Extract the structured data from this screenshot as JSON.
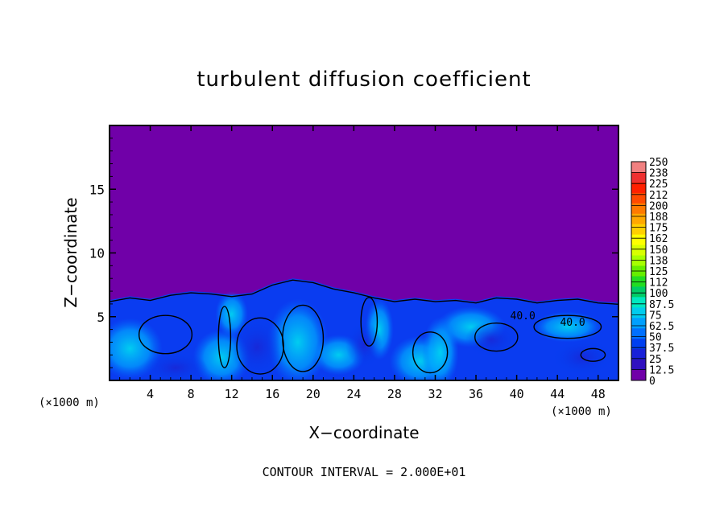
{
  "chart_data": {
    "type": "heatmap",
    "title": "turbulent diffusion coefficient",
    "xlabel": "X−coordinate",
    "ylabel": "Z−coordinate",
    "x_unit_left": "(×1000 m)",
    "x_unit_right": "(×1000 m)",
    "footer": "CONTOUR INTERVAL = 2.000E+01",
    "xlim": [
      0,
      50
    ],
    "ylim": [
      0,
      20
    ],
    "x_ticks": [
      4,
      8,
      12,
      16,
      20,
      24,
      28,
      32,
      36,
      40,
      44,
      48
    ],
    "y_ticks": [
      5,
      10,
      15
    ],
    "grid": false,
    "colorbar": {
      "labels": [
        "250",
        "238",
        "225",
        "212",
        "200",
        "188",
        "175",
        "162",
        "150",
        "138",
        "125",
        "112",
        "100",
        "87.5",
        "75",
        "62.5",
        "50",
        "37.5",
        "25",
        "12.5",
        "0"
      ],
      "colors": [
        "#f08080",
        "#ee3030",
        "#ff2000",
        "#ff4a00",
        "#ff7a00",
        "#ffa800",
        "#ffd000",
        "#ffff00",
        "#d8ff00",
        "#a6ff00",
        "#66ee00",
        "#22dd22",
        "#00cc66",
        "#00e8c0",
        "#00ccee",
        "#00a0ff",
        "#0070ff",
        "#0040f0",
        "#1820d8",
        "#3010c0",
        "#7000a8"
      ]
    },
    "turbulent_top_z": [
      [
        0,
        6.3
      ],
      [
        2,
        6.6
      ],
      [
        4,
        6.4
      ],
      [
        6,
        6.8
      ],
      [
        8,
        7.0
      ],
      [
        10,
        6.9
      ],
      [
        12,
        6.7
      ],
      [
        14,
        6.9
      ],
      [
        16,
        7.6
      ],
      [
        18,
        8.0
      ],
      [
        20,
        7.8
      ],
      [
        22,
        7.3
      ],
      [
        24,
        7.0
      ],
      [
        26,
        6.6
      ],
      [
        28,
        6.3
      ],
      [
        30,
        6.5
      ],
      [
        32,
        6.3
      ],
      [
        34,
        6.4
      ],
      [
        36,
        6.2
      ],
      [
        38,
        6.6
      ],
      [
        40,
        6.5
      ],
      [
        42,
        6.2
      ],
      [
        44,
        6.4
      ],
      [
        46,
        6.5
      ],
      [
        48,
        6.2
      ],
      [
        50,
        6.1
      ]
    ],
    "contour_labels": [
      {
        "text": "40.0",
        "x": 45.5,
        "z": 4.3
      },
      {
        "text": "40.0",
        "x": 40.6,
        "z": 4.8
      }
    ]
  }
}
